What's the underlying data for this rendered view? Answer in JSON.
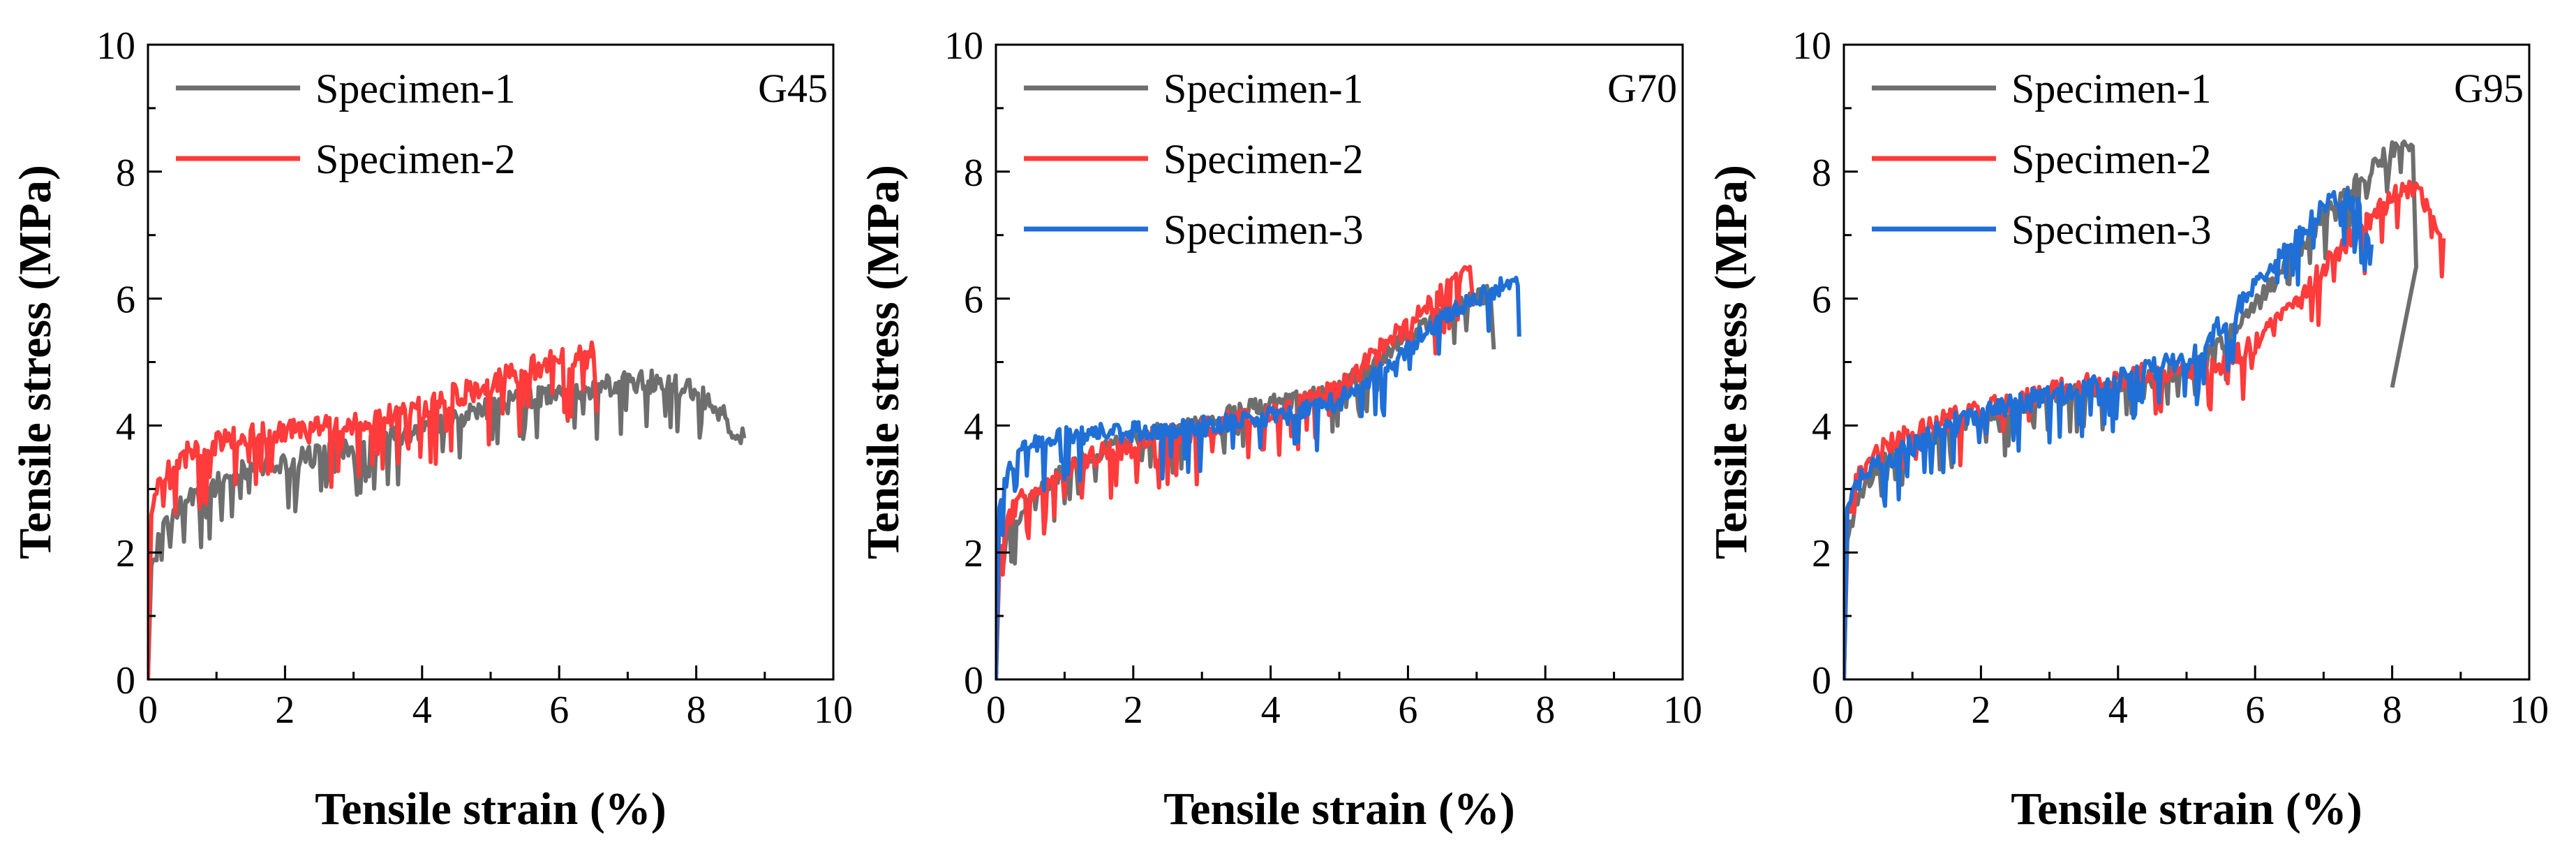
{
  "chart_data": [
    {
      "type": "line",
      "panel": "G45",
      "xlabel": "Tensile strain (%)",
      "ylabel": "Tensile stress (MPa)",
      "xlim": [
        0,
        10
      ],
      "ylim": [
        0,
        10
      ],
      "xticks": [
        "0",
        "2",
        "4",
        "6",
        "8",
        "10"
      ],
      "yticks": [
        "0",
        "2",
        "4",
        "6",
        "8",
        "10"
      ],
      "legend_position": "top-left",
      "series": [
        {
          "name": "Specimen-1",
          "color": "#6e6e6e",
          "points": [
            [
              0,
              0
            ],
            [
              0.05,
              1.8
            ],
            [
              0.2,
              2.3
            ],
            [
              0.4,
              2.7
            ],
            [
              0.7,
              2.9
            ],
            [
              1.0,
              3.1
            ],
            [
              1.5,
              3.35
            ],
            [
              2.0,
              3.45
            ],
            [
              2.5,
              3.55
            ],
            [
              3.0,
              3.7
            ],
            [
              3.5,
              3.8
            ],
            [
              4.0,
              3.95
            ],
            [
              4.5,
              4.15
            ],
            [
              5.0,
              4.3
            ],
            [
              5.5,
              4.45
            ],
            [
              6.0,
              4.5
            ],
            [
              6.5,
              4.6
            ],
            [
              7.0,
              4.72
            ],
            [
              7.5,
              4.7
            ],
            [
              8.0,
              4.55
            ],
            [
              8.3,
              4.3
            ],
            [
              8.5,
              4.0
            ],
            [
              8.7,
              3.8
            ]
          ],
          "noise": 0.22
        },
        {
          "name": "Specimen-2",
          "color": "#ff3b3b",
          "points": [
            [
              0,
              0
            ],
            [
              0.05,
              2.6
            ],
            [
              0.15,
              3.1
            ],
            [
              0.3,
              3.4
            ],
            [
              0.6,
              3.6
            ],
            [
              1.0,
              3.75
            ],
            [
              1.5,
              3.85
            ],
            [
              2.0,
              3.9
            ],
            [
              2.5,
              3.95
            ],
            [
              3.0,
              4.05
            ],
            [
              3.5,
              4.15
            ],
            [
              4.0,
              4.3
            ],
            [
              4.5,
              4.5
            ],
            [
              5.0,
              4.7
            ],
            [
              5.5,
              4.9
            ],
            [
              6.0,
              5.05
            ],
            [
              6.3,
              5.1
            ],
            [
              6.5,
              5.15
            ],
            [
              6.55,
              4.2
            ]
          ],
          "noise": 0.25
        }
      ]
    },
    {
      "type": "line",
      "panel": "G70",
      "xlabel": "Tensile strain (%)",
      "ylabel": "Tensile stress (MPa)",
      "xlim": [
        0,
        10
      ],
      "ylim": [
        0,
        10
      ],
      "xticks": [
        "0",
        "2",
        "4",
        "6",
        "8",
        "10"
      ],
      "yticks": [
        "0",
        "2",
        "4",
        "6",
        "8",
        "10"
      ],
      "legend_position": "top-left",
      "series": [
        {
          "name": "Specimen-1",
          "color": "#6e6e6e",
          "points": [
            [
              0,
              0
            ],
            [
              0.05,
              1.8
            ],
            [
              0.2,
              2.4
            ],
            [
              0.5,
              2.9
            ],
            [
              1.0,
              3.3
            ],
            [
              1.5,
              3.6
            ],
            [
              2.0,
              3.8
            ],
            [
              2.5,
              3.95
            ],
            [
              3.0,
              4.1
            ],
            [
              3.5,
              4.25
            ],
            [
              4.0,
              4.35
            ],
            [
              4.5,
              4.45
            ],
            [
              5.0,
              4.6
            ],
            [
              5.5,
              5.0
            ],
            [
              6.0,
              5.4
            ],
            [
              6.5,
              5.8
            ],
            [
              7.0,
              6.05
            ],
            [
              7.2,
              6.1
            ],
            [
              7.25,
              5.2
            ]
          ],
          "noise": 0.18
        },
        {
          "name": "Specimen-2",
          "color": "#ff3b3b",
          "points": [
            [
              0,
              0
            ],
            [
              0.05,
              2.0
            ],
            [
              0.2,
              2.6
            ],
            [
              0.5,
              3.0
            ],
            [
              1.0,
              3.3
            ],
            [
              1.5,
              3.55
            ],
            [
              2.0,
              3.7
            ],
            [
              2.5,
              3.85
            ],
            [
              3.0,
              3.95
            ],
            [
              3.5,
              4.1
            ],
            [
              4.0,
              4.2
            ],
            [
              4.5,
              4.35
            ],
            [
              5.0,
              4.6
            ],
            [
              5.5,
              5.1
            ],
            [
              6.0,
              5.6
            ],
            [
              6.5,
              6.1
            ],
            [
              6.9,
              6.5
            ],
            [
              6.95,
              5.9
            ]
          ],
          "noise": 0.22
        },
        {
          "name": "Specimen-3",
          "color": "#1f6fd6",
          "points": [
            [
              0,
              0
            ],
            [
              0.05,
              2.7
            ],
            [
              0.15,
              3.2
            ],
            [
              0.3,
              3.55
            ],
            [
              0.6,
              3.75
            ],
            [
              1.0,
              3.85
            ],
            [
              1.5,
              3.9
            ],
            [
              2.0,
              3.92
            ],
            [
              2.5,
              3.95
            ],
            [
              3.0,
              4.0
            ],
            [
              3.5,
              4.05
            ],
            [
              4.0,
              4.15
            ],
            [
              4.5,
              4.25
            ],
            [
              5.0,
              4.4
            ],
            [
              5.5,
              4.8
            ],
            [
              6.0,
              5.25
            ],
            [
              6.5,
              5.7
            ],
            [
              7.0,
              6.05
            ],
            [
              7.5,
              6.25
            ],
            [
              7.6,
              6.2
            ],
            [
              7.62,
              5.4
            ]
          ],
          "noise": 0.2
        }
      ]
    },
    {
      "type": "line",
      "panel": "G95",
      "xlabel": "Tensile strain (%)",
      "ylabel": "Tensile stress (MPa)",
      "xlim": [
        0,
        10
      ],
      "ylim": [
        0,
        10
      ],
      "xticks": [
        "0",
        "2",
        "4",
        "6",
        "8",
        "10"
      ],
      "yticks": [
        "0",
        "2",
        "4",
        "6",
        "8",
        "10"
      ],
      "legend_position": "top-left",
      "series": [
        {
          "name": "Specimen-1",
          "color": "#6e6e6e",
          "points": [
            [
              0,
              0
            ],
            [
              0.05,
              2.2
            ],
            [
              0.2,
              2.9
            ],
            [
              0.5,
              3.4
            ],
            [
              1.0,
              3.7
            ],
            [
              1.5,
              3.95
            ],
            [
              2.0,
              4.1
            ],
            [
              2.5,
              4.3
            ],
            [
              3.0,
              4.45
            ],
            [
              3.5,
              4.55
            ],
            [
              4.0,
              4.65
            ],
            [
              4.5,
              4.75
            ],
            [
              5.0,
              4.9
            ],
            [
              5.5,
              5.3
            ],
            [
              6.0,
              5.9
            ],
            [
              6.5,
              6.6
            ],
            [
              7.0,
              7.3
            ],
            [
              7.5,
              7.9
            ],
            [
              8.0,
              8.35
            ],
            [
              8.2,
              8.45
            ],
            [
              8.3,
              8.4
            ],
            [
              8.35,
              6.5
            ],
            [
              8.0,
              4.6
            ]
          ],
          "noise": 0.18
        },
        {
          "name": "Specimen-2",
          "color": "#ff3b3b",
          "points": [
            [
              0,
              0
            ],
            [
              0.05,
              2.6
            ],
            [
              0.2,
              3.2
            ],
            [
              0.5,
              3.6
            ],
            [
              1.0,
              3.9
            ],
            [
              1.5,
              4.1
            ],
            [
              2.0,
              4.25
            ],
            [
              2.5,
              4.4
            ],
            [
              3.0,
              4.55
            ],
            [
              3.5,
              4.65
            ],
            [
              4.0,
              4.75
            ],
            [
              4.5,
              4.85
            ],
            [
              5.0,
              4.9
            ],
            [
              5.5,
              5.0
            ],
            [
              6.0,
              5.3
            ],
            [
              6.5,
              5.8
            ],
            [
              7.0,
              6.5
            ],
            [
              7.5,
              7.1
            ],
            [
              8.0,
              7.6
            ],
            [
              8.3,
              7.8
            ],
            [
              8.6,
              7.4
            ],
            [
              8.75,
              6.95
            ]
          ],
          "noise": 0.22
        },
        {
          "name": "Specimen-3",
          "color": "#1f6fd6",
          "points": [
            [
              0,
              0
            ],
            [
              0.05,
              2.7
            ],
            [
              0.2,
              3.1
            ],
            [
              0.5,
              3.4
            ],
            [
              1.0,
              3.7
            ],
            [
              1.5,
              4.0
            ],
            [
              2.0,
              4.2
            ],
            [
              2.5,
              4.35
            ],
            [
              3.0,
              4.5
            ],
            [
              3.5,
              4.6
            ],
            [
              4.0,
              4.75
            ],
            [
              4.5,
              4.9
            ],
            [
              5.0,
              5.05
            ],
            [
              5.5,
              5.6
            ],
            [
              6.0,
              6.2
            ],
            [
              6.5,
              6.8
            ],
            [
              7.0,
              7.45
            ],
            [
              7.3,
              7.7
            ],
            [
              7.5,
              7.45
            ],
            [
              7.7,
              6.85
            ]
          ],
          "noise": 0.22
        }
      ]
    }
  ]
}
